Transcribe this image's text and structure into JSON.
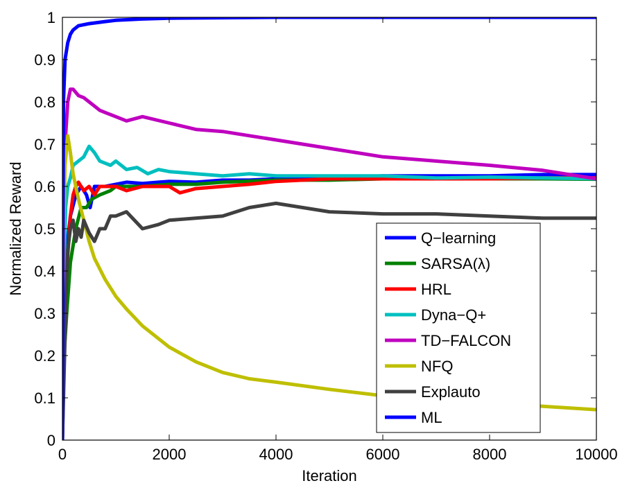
{
  "chart_data": {
    "type": "line",
    "title": "",
    "xlabel": "Iteration",
    "ylabel": "Normalized Reward",
    "xlim": [
      0,
      10000
    ],
    "ylim": [
      0,
      1
    ],
    "xticks": [
      0,
      2000,
      4000,
      6000,
      8000,
      10000
    ],
    "yticks": [
      0,
      0.1,
      0.2,
      0.3,
      0.4,
      0.5,
      0.6,
      0.7,
      0.8,
      0.9,
      1
    ],
    "xtick_labels": [
      "0",
      "2000",
      "4000",
      "6000",
      "8000",
      "10000"
    ],
    "ytick_labels": [
      "0",
      "0.1",
      "0.2",
      "0.3",
      "0.4",
      "0.5",
      "0.6",
      "0.7",
      "0.8",
      "0.9",
      "1"
    ],
    "grid": false,
    "legend_position": "bottom-right",
    "series": [
      {
        "name": "Q−learning",
        "color": "#0000ff",
        "x": [
          0,
          30,
          80,
          150,
          250,
          350,
          450,
          520,
          600,
          800,
          1000,
          1200,
          1500,
          1800,
          2000,
          2500,
          3000,
          3500,
          4000,
          5000,
          6000,
          7000,
          8000,
          9000,
          10000
        ],
        "y": [
          0.0,
          0.32,
          0.45,
          0.53,
          0.58,
          0.6,
          0.58,
          0.55,
          0.6,
          0.6,
          0.605,
          0.61,
          0.607,
          0.61,
          0.612,
          0.61,
          0.615,
          0.615,
          0.618,
          0.62,
          0.625,
          0.625,
          0.625,
          0.628,
          0.628
        ]
      },
      {
        "name": "SARSA(λ)",
        "color": "#008000",
        "x": [
          0,
          30,
          80,
          150,
          250,
          350,
          450,
          550,
          700,
          900,
          1000,
          1500,
          2000,
          2500,
          3000,
          4000,
          5000,
          6000,
          7000,
          8000,
          9000,
          10000
        ],
        "y": [
          0.0,
          0.2,
          0.3,
          0.42,
          0.5,
          0.55,
          0.55,
          0.57,
          0.58,
          0.59,
          0.6,
          0.6,
          0.605,
          0.605,
          0.61,
          0.615,
          0.615,
          0.618,
          0.618,
          0.618,
          0.618,
          0.617
        ]
      },
      {
        "name": "HRL",
        "color": "#ff0000",
        "x": [
          0,
          30,
          80,
          150,
          200,
          250,
          300,
          400,
          500,
          600,
          700,
          800,
          1000,
          1200,
          1500,
          2000,
          2200,
          2500,
          3000,
          3500,
          4000,
          5000,
          6000,
          7000,
          8000,
          9000,
          10000
        ],
        "y": [
          0.0,
          0.25,
          0.4,
          0.53,
          0.58,
          0.6,
          0.61,
          0.59,
          0.6,
          0.58,
          0.6,
          0.6,
          0.6,
          0.59,
          0.6,
          0.6,
          0.585,
          0.595,
          0.6,
          0.605,
          0.612,
          0.618,
          0.618,
          0.618,
          0.618,
          0.62,
          0.62
        ]
      },
      {
        "name": "Dyna−Q+",
        "color": "#00bfbf",
        "x": [
          0,
          30,
          60,
          100,
          150,
          200,
          300,
          400,
          500,
          600,
          700,
          800,
          900,
          1000,
          1200,
          1400,
          1600,
          1800,
          2000,
          2500,
          3000,
          3500,
          4000,
          5000,
          6000,
          7000,
          8000,
          9000,
          10000
        ],
        "y": [
          0.0,
          0.4,
          0.55,
          0.6,
          0.62,
          0.65,
          0.66,
          0.67,
          0.695,
          0.68,
          0.66,
          0.655,
          0.65,
          0.66,
          0.64,
          0.645,
          0.63,
          0.64,
          0.635,
          0.63,
          0.625,
          0.63,
          0.625,
          0.625,
          0.625,
          0.62,
          0.622,
          0.62,
          0.618
        ]
      },
      {
        "name": "TD−FALCON",
        "color": "#bf00bf",
        "x": [
          0,
          30,
          60,
          100,
          150,
          200,
          300,
          400,
          500,
          600,
          700,
          800,
          1000,
          1200,
          1500,
          2000,
          2500,
          3000,
          3500,
          4000,
          4500,
          5000,
          6000,
          7000,
          8000,
          9000,
          10000
        ],
        "y": [
          0.0,
          0.6,
          0.72,
          0.8,
          0.83,
          0.83,
          0.815,
          0.81,
          0.8,
          0.79,
          0.78,
          0.775,
          0.765,
          0.755,
          0.765,
          0.75,
          0.735,
          0.73,
          0.72,
          0.71,
          0.7,
          0.69,
          0.67,
          0.66,
          0.65,
          0.638,
          0.618
        ]
      },
      {
        "name": "NFQ",
        "color": "#bfbf00",
        "x": [
          0,
          20,
          50,
          100,
          150,
          200,
          300,
          400,
          500,
          600,
          800,
          1000,
          1200,
          1500,
          2000,
          2500,
          3000,
          3500,
          4000,
          5000,
          6000,
          7000,
          8000,
          9000,
          10000
        ],
        "y": [
          0.0,
          0.45,
          0.65,
          0.72,
          0.68,
          0.63,
          0.57,
          0.52,
          0.47,
          0.43,
          0.38,
          0.34,
          0.31,
          0.27,
          0.22,
          0.185,
          0.16,
          0.145,
          0.137,
          0.12,
          0.105,
          0.095,
          0.088,
          0.08,
          0.072
        ]
      },
      {
        "name": "Explauto",
        "color": "#404040",
        "x": [
          0,
          30,
          60,
          100,
          150,
          200,
          250,
          300,
          350,
          400,
          500,
          600,
          700,
          800,
          900,
          1000,
          1200,
          1500,
          1800,
          2000,
          2500,
          3000,
          3500,
          4000,
          4500,
          5000,
          6000,
          7000,
          8000,
          9000,
          10000
        ],
        "y": [
          0.0,
          0.15,
          0.3,
          0.45,
          0.5,
          0.52,
          0.47,
          0.5,
          0.48,
          0.52,
          0.49,
          0.47,
          0.5,
          0.5,
          0.53,
          0.53,
          0.54,
          0.5,
          0.51,
          0.52,
          0.525,
          0.53,
          0.55,
          0.56,
          0.55,
          0.54,
          0.535,
          0.535,
          0.53,
          0.525,
          0.525
        ]
      },
      {
        "name": "ML",
        "color": "#0000ff",
        "x": [
          0,
          20,
          50,
          100,
          150,
          200,
          300,
          500,
          800,
          1000,
          1500,
          2000,
          3000,
          4000,
          5000,
          6000,
          7000,
          8000,
          9000,
          10000
        ],
        "y": [
          0.0,
          0.8,
          0.9,
          0.94,
          0.96,
          0.97,
          0.98,
          0.985,
          0.99,
          0.993,
          0.996,
          0.998,
          0.999,
          1.0,
          1.0,
          1.0,
          1.0,
          1.0,
          1.0,
          1.0
        ]
      }
    ]
  }
}
